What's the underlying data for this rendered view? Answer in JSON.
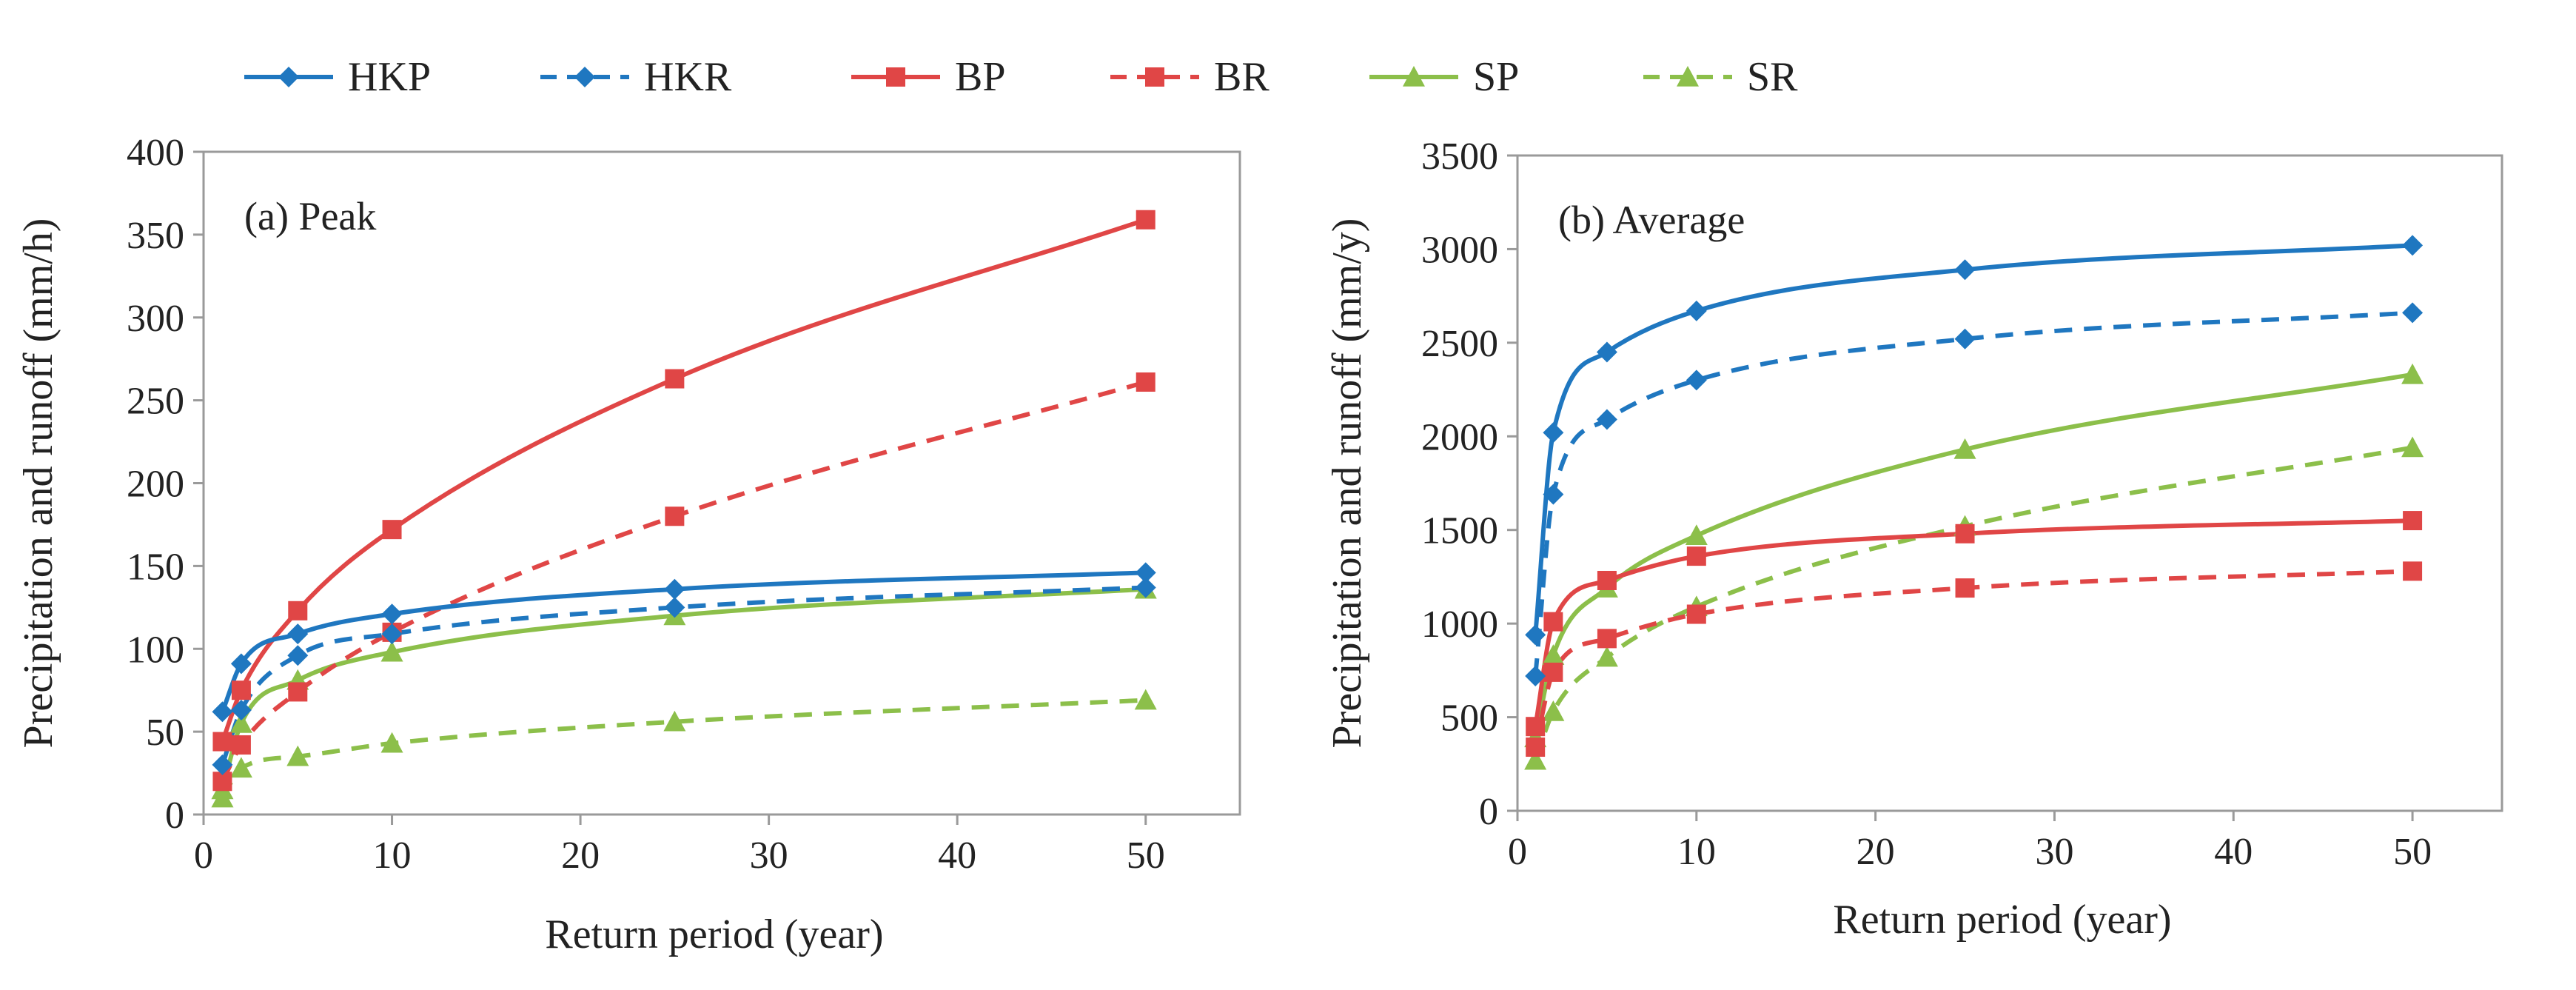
{
  "legend": [
    {
      "name": "HKP",
      "color": "#1f77c0",
      "dashed": false,
      "marker": "diamond"
    },
    {
      "name": "HKR",
      "color": "#1f77c0",
      "dashed": true,
      "marker": "diamond"
    },
    {
      "name": "BP",
      "color": "#e04646",
      "dashed": false,
      "marker": "square"
    },
    {
      "name": "BR",
      "color": "#e04646",
      "dashed": true,
      "marker": "square"
    },
    {
      "name": "SP",
      "color": "#8cbf4a",
      "dashed": false,
      "marker": "triangle"
    },
    {
      "name": "SR",
      "color": "#8cbf4a",
      "dashed": true,
      "marker": "triangle"
    }
  ],
  "chart_data": [
    {
      "type": "line",
      "panel_label": "(a)  Peak",
      "xlabel": "Return period (year)",
      "ylabel": "Precipitation  and runoff (mm/h)",
      "xlim": [
        0,
        55
      ],
      "ylim": [
        0,
        400
      ],
      "xticks": [
        0,
        10,
        20,
        30,
        40,
        50
      ],
      "yticks": [
        0,
        50,
        100,
        150,
        200,
        250,
        300,
        350,
        400
      ],
      "x": [
        1,
        2,
        5,
        10,
        25,
        50
      ],
      "series": [
        {
          "name": "HKP",
          "values": [
            62,
            91,
            109,
            121,
            136,
            146
          ]
        },
        {
          "name": "HKR",
          "values": [
            30,
            63,
            96,
            109,
            125,
            137
          ]
        },
        {
          "name": "BP",
          "values": [
            44,
            75,
            123,
            172,
            263,
            359
          ]
        },
        {
          "name": "BR",
          "values": [
            20,
            42,
            74,
            110,
            180,
            261
          ]
        },
        {
          "name": "SP",
          "values": [
            15,
            55,
            81,
            98,
            120,
            136
          ]
        },
        {
          "name": "SR",
          "values": [
            10,
            28,
            35,
            43,
            56,
            69
          ]
        }
      ]
    },
    {
      "type": "line",
      "panel_label": "(b)  Average",
      "xlabel": "Return period (year)",
      "ylabel": "Precipitation  and runoff (mm/y)",
      "xlim": [
        0,
        55
      ],
      "ylim": [
        0,
        3500
      ],
      "xticks": [
        0,
        10,
        20,
        30,
        40,
        50
      ],
      "yticks": [
        0,
        500,
        1000,
        1500,
        2000,
        2500,
        3000,
        3500
      ],
      "x": [
        1,
        2,
        5,
        10,
        25,
        50
      ],
      "series": [
        {
          "name": "HKP",
          "values": [
            940,
            2020,
            2450,
            2670,
            2890,
            3020
          ]
        },
        {
          "name": "HKR",
          "values": [
            720,
            1690,
            2090,
            2300,
            2520,
            2660
          ]
        },
        {
          "name": "BP",
          "values": [
            450,
            1010,
            1230,
            1360,
            1480,
            1550
          ]
        },
        {
          "name": "BR",
          "values": [
            340,
            740,
            920,
            1050,
            1190,
            1280
          ]
        },
        {
          "name": "SP",
          "values": [
            390,
            830,
            1190,
            1470,
            1930,
            2330
          ]
        },
        {
          "name": "SR",
          "values": [
            270,
            530,
            820,
            1090,
            1520,
            1940
          ]
        }
      ]
    }
  ]
}
